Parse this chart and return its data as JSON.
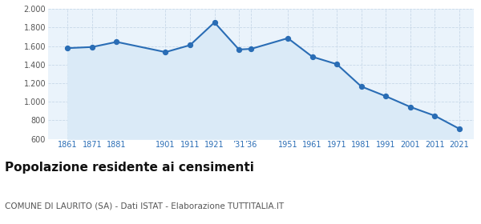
{
  "years": [
    1861,
    1871,
    1881,
    1901,
    1911,
    1921,
    1931,
    1936,
    1951,
    1961,
    1971,
    1981,
    1991,
    2001,
    2011,
    2021
  ],
  "population": [
    1578,
    1590,
    1645,
    1535,
    1610,
    1855,
    1563,
    1570,
    1685,
    1485,
    1405,
    1165,
    1060,
    945,
    850,
    710
  ],
  "xtick_positions": [
    1861,
    1871,
    1881,
    1901,
    1911,
    1921,
    1931,
    1936,
    1951,
    1961,
    1971,
    1981,
    1991,
    2001,
    2011,
    2021
  ],
  "xtick_labels": [
    "1861",
    "1871",
    "1881",
    "1901",
    "1911",
    "1921",
    "’31",
    "’36",
    "1951",
    "1961",
    "1971",
    "1981",
    "1991",
    "2001",
    "2011",
    "2021"
  ],
  "ylim": [
    600,
    2000
  ],
  "yticks": [
    600,
    800,
    1000,
    1200,
    1400,
    1600,
    1800,
    2000
  ],
  "xlim_left": 1853,
  "xlim_right": 2027,
  "line_color": "#2a6db5",
  "fill_color": "#daeaf7",
  "marker_color": "#2a6db5",
  "grid_color": "#c8d8e8",
  "background_color": "#ffffff",
  "plot_bg_color": "#eaf3fb",
  "title": "Popolazione residente ai censimenti",
  "subtitle": "COMUNE DI LAURITO (SA) - Dati ISTAT - Elaborazione TUTTITALIA.IT",
  "title_fontsize": 11,
  "subtitle_fontsize": 7.5,
  "tick_fontsize": 7,
  "xtick_color": "#2a6db5",
  "ytick_color": "#555555"
}
